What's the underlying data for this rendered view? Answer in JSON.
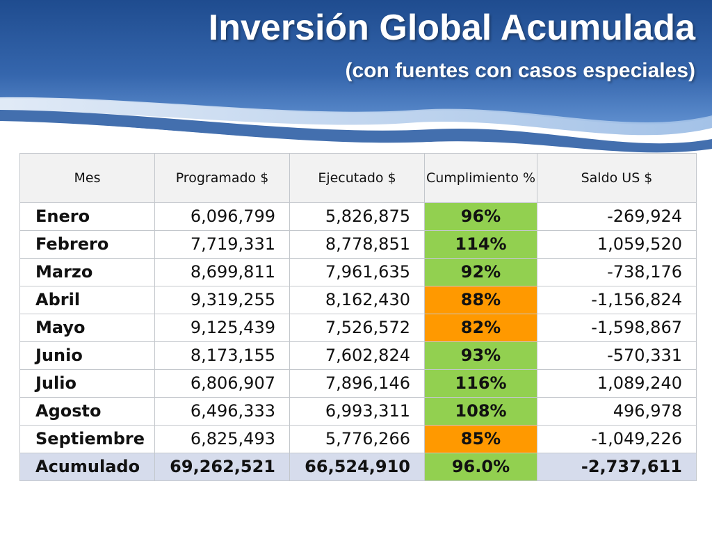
{
  "slide": {
    "title": "Inversión Global Acumulada",
    "subtitle": "(con fuentes con casos especiales)"
  },
  "colors": {
    "banner_dark": "#1f4c8f",
    "banner_light": "#5f8fcf",
    "header_bg": "#f2f2f2",
    "pct_good": "#92d050",
    "pct_warn": "#ff9900",
    "total_row_bg": "#d6dcec"
  },
  "table": {
    "headers": [
      "Mes",
      "Programado $",
      "Ejecutado $",
      "Cumplimiento %",
      "Saldo US $"
    ],
    "rows": [
      {
        "mes": "Enero",
        "programado": "6,096,799",
        "ejecutado": "5,826,875",
        "cumplimiento": "96%",
        "status": "good",
        "saldo": "-269,924"
      },
      {
        "mes": "Febrero",
        "programado": "7,719,331",
        "ejecutado": "8,778,851",
        "cumplimiento": "114%",
        "status": "good",
        "saldo": "1,059,520"
      },
      {
        "mes": "Marzo",
        "programado": "8,699,811",
        "ejecutado": "7,961,635",
        "cumplimiento": "92%",
        "status": "good",
        "saldo": "-738,176"
      },
      {
        "mes": "Abril",
        "programado": "9,319,255",
        "ejecutado": "8,162,430",
        "cumplimiento": "88%",
        "status": "warn",
        "saldo": "-1,156,824"
      },
      {
        "mes": "Mayo",
        "programado": "9,125,439",
        "ejecutado": "7,526,572",
        "cumplimiento": "82%",
        "status": "warn",
        "saldo": "-1,598,867"
      },
      {
        "mes": "Junio",
        "programado": "8,173,155",
        "ejecutado": "7,602,824",
        "cumplimiento": "93%",
        "status": "good",
        "saldo": "-570,331"
      },
      {
        "mes": "Julio",
        "programado": "6,806,907",
        "ejecutado": "7,896,146",
        "cumplimiento": "116%",
        "status": "good",
        "saldo": "1,089,240"
      },
      {
        "mes": "Agosto",
        "programado": "6,496,333",
        "ejecutado": "6,993,311",
        "cumplimiento": "108%",
        "status": "good",
        "saldo": "496,978"
      },
      {
        "mes": "Septiembre",
        "programado": "6,825,493",
        "ejecutado": "5,776,266",
        "cumplimiento": "85%",
        "status": "warn",
        "saldo": "-1,049,226"
      }
    ],
    "total": {
      "mes": "Acumulado",
      "programado": "69,262,521",
      "ejecutado": "66,524,910",
      "cumplimiento": "96.0%",
      "saldo": "-2,737,611"
    }
  }
}
